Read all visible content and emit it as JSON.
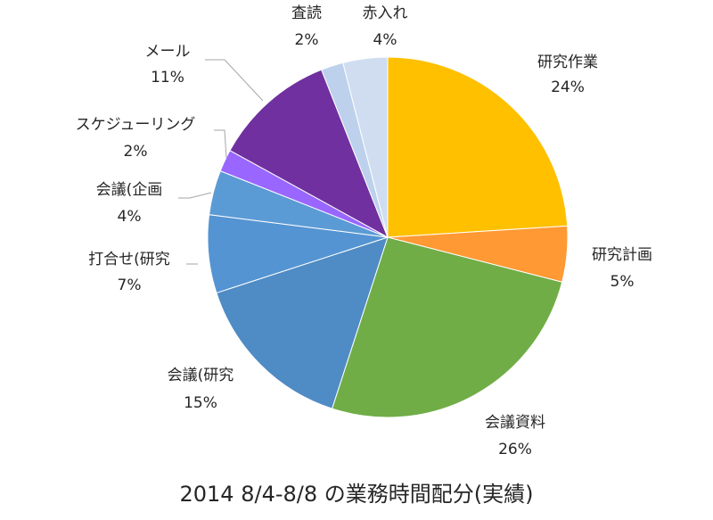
{
  "chart_data": {
    "type": "pie",
    "title": "2014 8/4-8/8 の業務時間配分(実績)",
    "slices": [
      {
        "label": "研究作業",
        "value": 24,
        "pct_label": "24%",
        "color": "#FFC000"
      },
      {
        "label": "研究計画",
        "value": 5,
        "pct_label": "5%",
        "color": "#FF9933"
      },
      {
        "label": "会議資料",
        "value": 26,
        "pct_label": "26%",
        "color": "#70AD47"
      },
      {
        "label": "会議(研究",
        "value": 15,
        "pct_label": "15%",
        "color": "#4F8BC5"
      },
      {
        "label": "打合せ(研究",
        "value": 7,
        "pct_label": "7%",
        "color": "#5494D2"
      },
      {
        "label": "会議(企画",
        "value": 4,
        "pct_label": "4%",
        "color": "#5B9BD5"
      },
      {
        "label": "スケジューリング",
        "value": 2,
        "pct_label": "2%",
        "color": "#9966FF"
      },
      {
        "label": "メール",
        "value": 11,
        "pct_label": "11%",
        "color": "#7030A0"
      },
      {
        "label": "査読",
        "value": 2,
        "pct_label": "2%",
        "color": "#BDD1EC"
      },
      {
        "label": "赤入れ",
        "value": 4,
        "pct_label": "4%",
        "color": "#D0DDF1"
      }
    ]
  }
}
